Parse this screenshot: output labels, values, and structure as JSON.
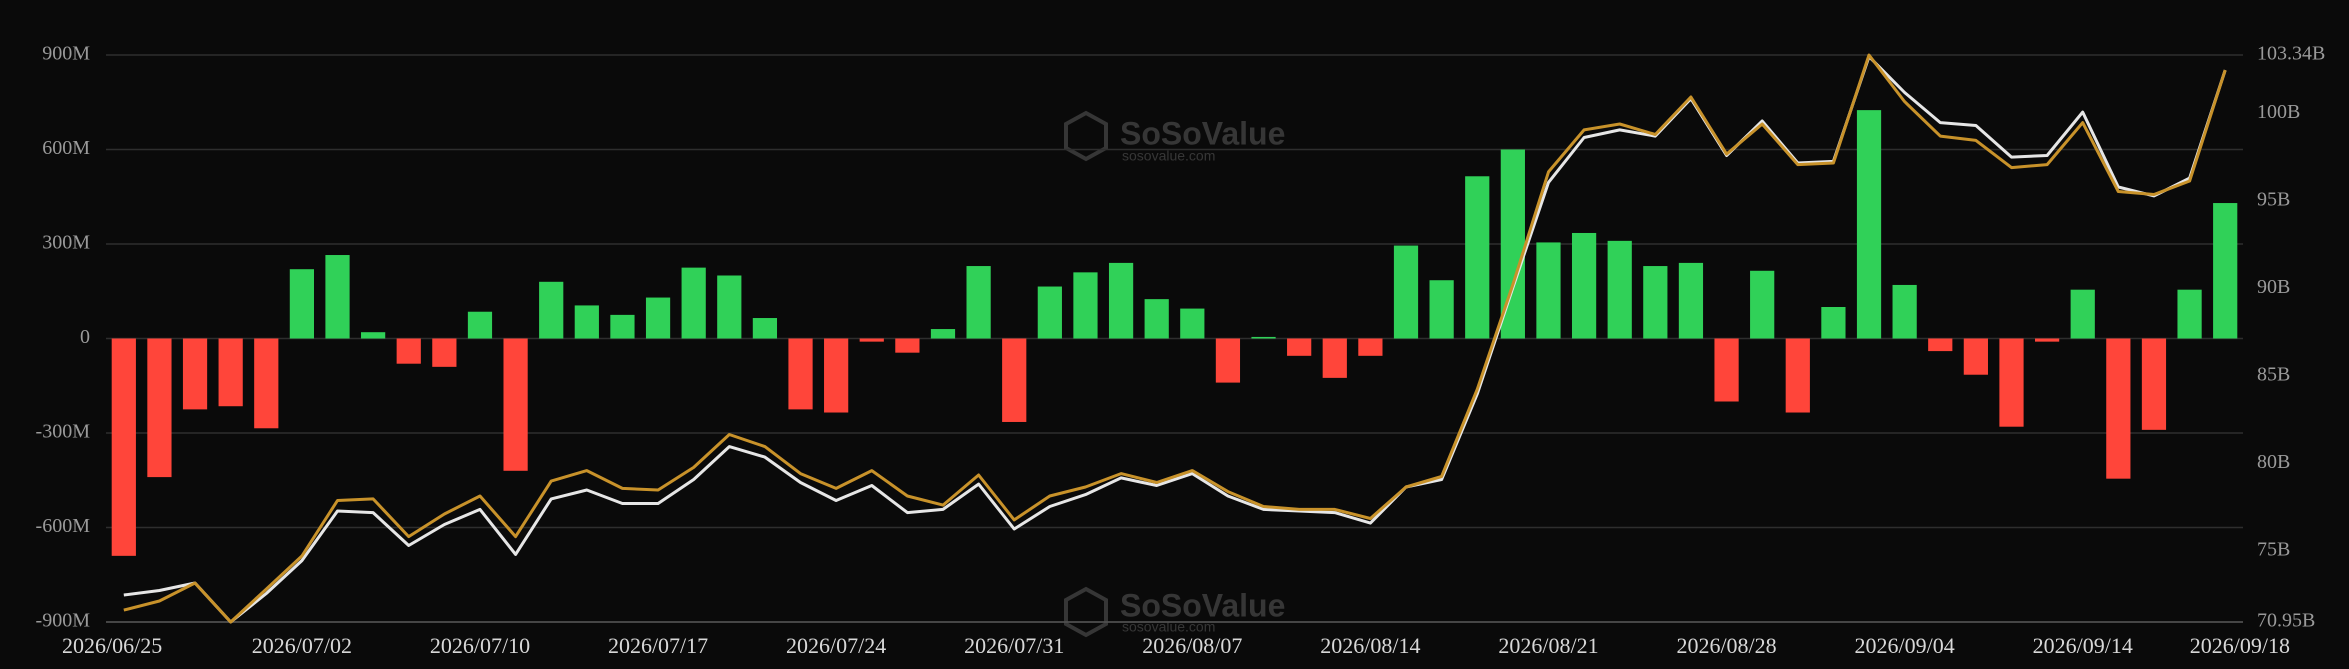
{
  "chart_data": {
    "type": "bar_line",
    "watermark": {
      "title": "SoSoValue",
      "subtitle": "sosovalue.com"
    },
    "categories": [
      "2026/06/25",
      null,
      null,
      null,
      null,
      "2026/07/02",
      null,
      null,
      null,
      null,
      "2026/07/10",
      null,
      null,
      null,
      null,
      "2026/07/17",
      null,
      null,
      null,
      null,
      "2026/07/24",
      null,
      null,
      null,
      null,
      "2026/07/31",
      null,
      null,
      null,
      null,
      "2026/08/07",
      null,
      null,
      null,
      null,
      "2026/08/14",
      null,
      null,
      null,
      null,
      "2026/08/21",
      null,
      null,
      null,
      null,
      "2026/08/28",
      null,
      null,
      null,
      null,
      "2026/09/04",
      null,
      null,
      null,
      null,
      "2026/09/14",
      null,
      null,
      null,
      "2026/09/18"
    ],
    "bars": {
      "positive_color": "#30d158",
      "negative_color": "#ff453a",
      "values": [
        -690,
        -440,
        -225,
        -215,
        -285,
        220,
        265,
        20,
        -80,
        -90,
        85,
        -420,
        180,
        105,
        75,
        130,
        225,
        200,
        65,
        -225,
        -235,
        -10,
        -45,
        30,
        230,
        -265,
        165,
        210,
        240,
        125,
        95,
        -140,
        5,
        -55,
        -125,
        -55,
        295,
        185,
        515,
        600,
        305,
        335,
        310,
        230,
        240,
        -200,
        215,
        -235,
        100,
        725,
        170,
        -40,
        -115,
        -280,
        -10,
        155,
        -445,
        -290,
        155,
        430
      ]
    },
    "series": [
      {
        "color": "#e6e6e6",
        "axis": "y2",
        "values": [
          72.49,
          72.75,
          73.18,
          70.95,
          72.58,
          74.46,
          77.29,
          77.2,
          75.32,
          76.52,
          77.38,
          74.81,
          77.98,
          78.49,
          77.72,
          77.72,
          79.09,
          80.97,
          80.37,
          78.92,
          77.89,
          78.75,
          77.2,
          77.38,
          78.83,
          76.26,
          77.55,
          78.23,
          79.18,
          78.75,
          79.43,
          78.15,
          77.38,
          77.29,
          77.2,
          76.6,
          78.66,
          79.09,
          83.97,
          90.06,
          96.06,
          98.63,
          99.06,
          98.71,
          100.85,
          97.6,
          99.57,
          97.17,
          97.26,
          103.25,
          101.2,
          99.48,
          99.31,
          97.51,
          97.6,
          100.08,
          95.8,
          95.29,
          96.31,
          102.48
        ]
      },
      {
        "color": "#c8922a",
        "axis": "y2",
        "values": [
          71.63,
          72.15,
          73.18,
          70.95,
          72.83,
          74.72,
          77.89,
          77.98,
          75.83,
          77.12,
          78.15,
          75.83,
          79.0,
          79.6,
          78.58,
          78.49,
          79.78,
          81.66,
          80.97,
          79.43,
          78.58,
          79.6,
          78.15,
          77.63,
          79.35,
          76.78,
          78.15,
          78.66,
          79.43,
          78.92,
          79.6,
          78.4,
          77.55,
          77.38,
          77.38,
          76.86,
          78.66,
          79.26,
          84.23,
          90.23,
          96.66,
          99.06,
          99.4,
          98.8,
          100.94,
          97.68,
          99.4,
          97.08,
          97.17,
          103.34,
          100.68,
          98.71,
          98.46,
          96.91,
          97.08,
          99.48,
          95.54,
          95.37,
          96.14,
          102.48
        ]
      }
    ],
    "ylim": [
      -900,
      900
    ],
    "yticks": [
      {
        "value": 900,
        "label": "900M"
      },
      {
        "value": 600,
        "label": "600M"
      },
      {
        "value": 300,
        "label": "300M"
      },
      0,
      {
        "value": -300,
        "label": "-300M"
      },
      {
        "value": -600,
        "label": "-600M"
      },
      {
        "value": -900,
        "label": "-900M"
      }
    ],
    "y2lim": [
      70.95,
      103.34
    ],
    "y2ticks": [
      {
        "value": 103.34,
        "label": "103.34B"
      },
      {
        "value": 100,
        "label": "100B"
      },
      {
        "value": 95,
        "label": "95B"
      },
      {
        "value": 90,
        "label": "90B"
      },
      {
        "value": 85,
        "label": "85B"
      },
      {
        "value": 80,
        "label": "80B"
      },
      {
        "value": 75,
        "label": "75B"
      },
      {
        "value": 70.95,
        "label": "70.95B"
      }
    ],
    "grid": true
  }
}
